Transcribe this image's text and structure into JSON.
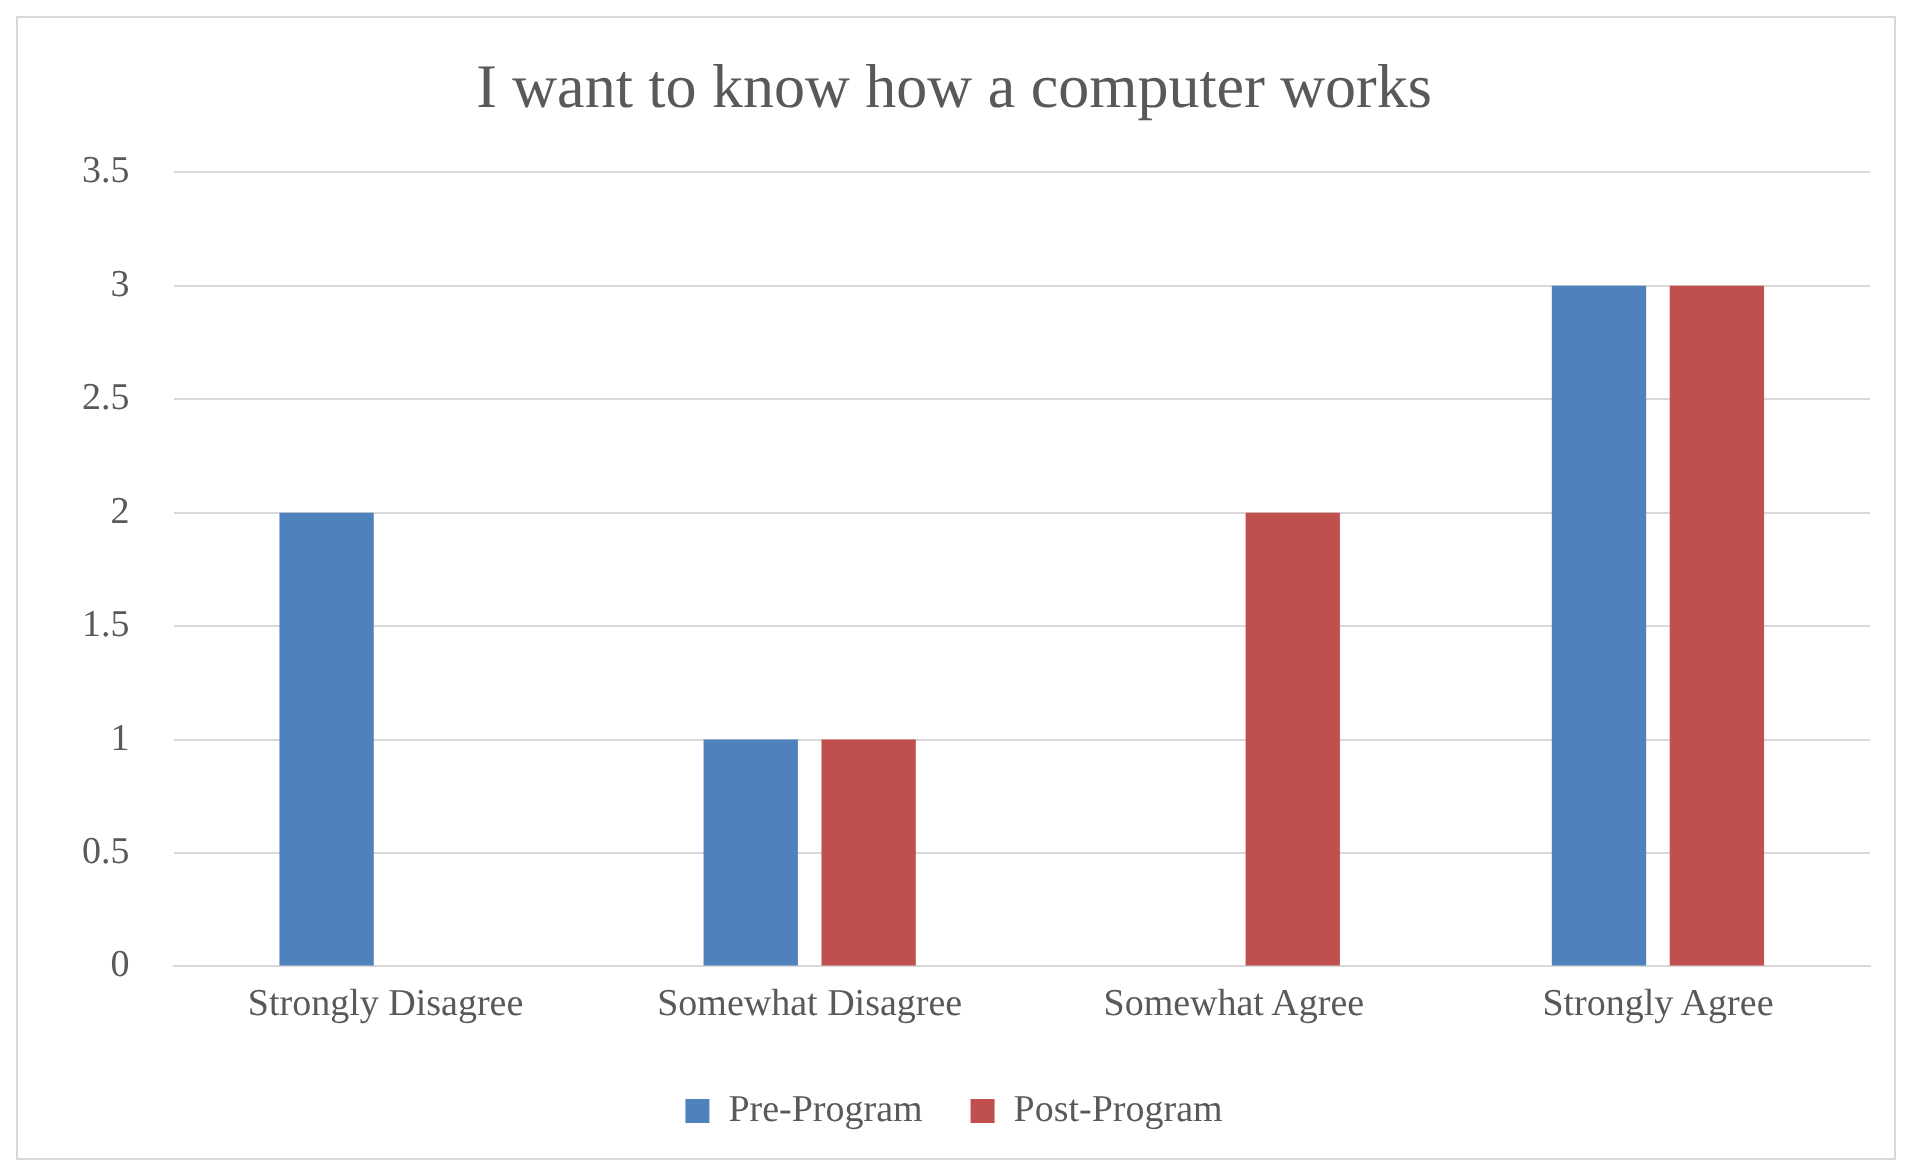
{
  "chart_data": {
    "type": "bar",
    "title": "I want to know how a computer works",
    "categories": [
      "Strongly Disagree",
      "Somewhat Disagree",
      "Somewhat Agree",
      "Strongly Agree"
    ],
    "series": [
      {
        "name": "Pre-Program",
        "color": "#4f81bd",
        "values": [
          2,
          1,
          0,
          3
        ]
      },
      {
        "name": "Post-Program",
        "color": "#c0504d",
        "values": [
          0,
          1,
          2,
          3
        ]
      }
    ],
    "ylim": [
      0,
      3.5
    ],
    "yticks": [
      0,
      0.5,
      1,
      1.5,
      2,
      2.5,
      3,
      3.5
    ],
    "grid": "y",
    "legend": "bottom"
  }
}
